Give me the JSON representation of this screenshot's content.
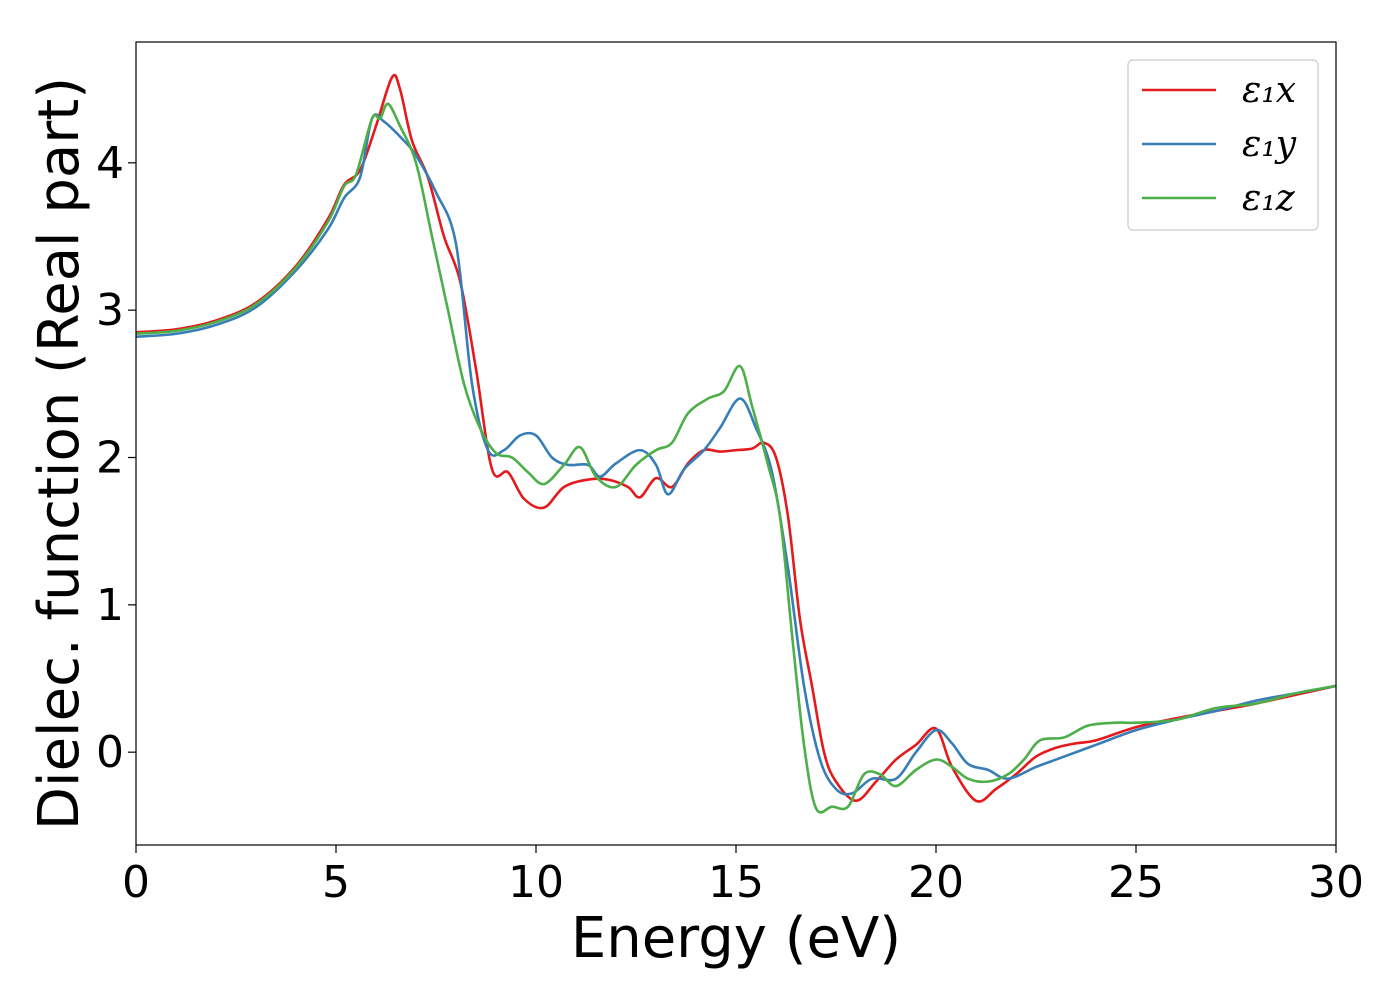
{
  "chart_data": {
    "type": "line",
    "xlabel": "Energy (eV)",
    "ylabel": "Dielec. function (Real part)",
    "xlim": [
      0,
      30
    ],
    "ylim": [
      -0.63,
      4.82
    ],
    "xticks": [
      0,
      5,
      10,
      15,
      20,
      25,
      30
    ],
    "yticks": [
      0,
      1,
      2,
      3,
      4
    ],
    "grid": false,
    "legend_position": "top-right",
    "series": [
      {
        "name": "ε₁x",
        "color": "#e41a1c",
        "points": [
          [
            0,
            2.85
          ],
          [
            1,
            2.87
          ],
          [
            2,
            2.93
          ],
          [
            3,
            3.05
          ],
          [
            4,
            3.3
          ],
          [
            4.8,
            3.62
          ],
          [
            5.2,
            3.85
          ],
          [
            5.6,
            3.95
          ],
          [
            6,
            4.25
          ],
          [
            6.4,
            4.58
          ],
          [
            6.6,
            4.5
          ],
          [
            6.9,
            4.15
          ],
          [
            7.3,
            3.9
          ],
          [
            7.7,
            3.5
          ],
          [
            8.1,
            3.2
          ],
          [
            8.5,
            2.6
          ],
          [
            8.9,
            1.92
          ],
          [
            9.3,
            1.9
          ],
          [
            9.7,
            1.72
          ],
          [
            10.2,
            1.66
          ],
          [
            10.7,
            1.8
          ],
          [
            11.3,
            1.85
          ],
          [
            11.8,
            1.85
          ],
          [
            12.3,
            1.8
          ],
          [
            12.6,
            1.73
          ],
          [
            13,
            1.86
          ],
          [
            13.4,
            1.8
          ],
          [
            13.8,
            1.96
          ],
          [
            14.2,
            2.05
          ],
          [
            14.6,
            2.04
          ],
          [
            15,
            2.05
          ],
          [
            15.4,
            2.06
          ],
          [
            15.7,
            2.1
          ],
          [
            16,
            2.0
          ],
          [
            16.3,
            1.6
          ],
          [
            16.6,
            0.9
          ],
          [
            16.9,
            0.45
          ],
          [
            17.2,
            0.0
          ],
          [
            17.5,
            -0.2
          ],
          [
            18.0,
            -0.33
          ],
          [
            18.5,
            -0.2
          ],
          [
            19,
            -0.05
          ],
          [
            19.5,
            0.05
          ],
          [
            20,
            0.16
          ],
          [
            20.4,
            -0.1
          ],
          [
            21,
            -0.33
          ],
          [
            21.5,
            -0.25
          ],
          [
            22,
            -0.15
          ],
          [
            22.5,
            -0.03
          ],
          [
            23,
            0.03
          ],
          [
            23.5,
            0.06
          ],
          [
            24,
            0.08
          ],
          [
            25,
            0.17
          ],
          [
            26,
            0.23
          ],
          [
            27,
            0.28
          ],
          [
            28,
            0.33
          ],
          [
            29,
            0.39
          ],
          [
            30,
            0.45
          ]
        ]
      },
      {
        "name": "ε₁y",
        "color": "#377eb8",
        "points": [
          [
            0,
            2.82
          ],
          [
            1,
            2.84
          ],
          [
            2,
            2.9
          ],
          [
            3,
            3.02
          ],
          [
            4,
            3.27
          ],
          [
            4.8,
            3.55
          ],
          [
            5.2,
            3.76
          ],
          [
            5.6,
            3.9
          ],
          [
            5.9,
            4.3
          ],
          [
            6.2,
            4.28
          ],
          [
            6.7,
            4.15
          ],
          [
            7,
            4.05
          ],
          [
            7.5,
            3.8
          ],
          [
            8,
            3.45
          ],
          [
            8.4,
            2.5
          ],
          [
            8.8,
            2.05
          ],
          [
            9.2,
            2.05
          ],
          [
            9.6,
            2.15
          ],
          [
            10,
            2.15
          ],
          [
            10.4,
            2.0
          ],
          [
            10.8,
            1.95
          ],
          [
            11.3,
            1.95
          ],
          [
            11.6,
            1.87
          ],
          [
            12,
            1.96
          ],
          [
            12.6,
            2.05
          ],
          [
            13,
            1.95
          ],
          [
            13.3,
            1.75
          ],
          [
            13.7,
            1.92
          ],
          [
            14.2,
            2.05
          ],
          [
            14.6,
            2.2
          ],
          [
            15.1,
            2.4
          ],
          [
            15.5,
            2.2
          ],
          [
            15.9,
            1.9
          ],
          [
            16.3,
            1.25
          ],
          [
            16.7,
            0.45
          ],
          [
            17.1,
            -0.05
          ],
          [
            17.5,
            -0.25
          ],
          [
            17.9,
            -0.28
          ],
          [
            18.4,
            -0.18
          ],
          [
            19,
            -0.18
          ],
          [
            19.5,
            0.0
          ],
          [
            20,
            0.15
          ],
          [
            20.4,
            0.06
          ],
          [
            20.8,
            -0.08
          ],
          [
            21.3,
            -0.12
          ],
          [
            21.8,
            -0.18
          ],
          [
            22.5,
            -0.1
          ],
          [
            23,
            -0.05
          ],
          [
            24,
            0.05
          ],
          [
            25,
            0.15
          ],
          [
            26,
            0.22
          ],
          [
            27,
            0.28
          ],
          [
            28,
            0.35
          ],
          [
            29,
            0.4
          ],
          [
            30,
            0.45
          ]
        ]
      },
      {
        "name": "ε₁z",
        "color": "#4daf4a",
        "points": [
          [
            0,
            2.84
          ],
          [
            1,
            2.86
          ],
          [
            2,
            2.92
          ],
          [
            3,
            3.04
          ],
          [
            4,
            3.29
          ],
          [
            4.8,
            3.6
          ],
          [
            5.2,
            3.84
          ],
          [
            5.5,
            3.92
          ],
          [
            5.9,
            4.3
          ],
          [
            6.1,
            4.3
          ],
          [
            6.3,
            4.4
          ],
          [
            6.6,
            4.25
          ],
          [
            7,
            4.0
          ],
          [
            7.4,
            3.5
          ],
          [
            7.8,
            3.0
          ],
          [
            8.2,
            2.5
          ],
          [
            8.6,
            2.2
          ],
          [
            9,
            2.03
          ],
          [
            9.4,
            2.0
          ],
          [
            9.8,
            1.9
          ],
          [
            10.2,
            1.82
          ],
          [
            10.7,
            1.95
          ],
          [
            11.1,
            2.07
          ],
          [
            11.5,
            1.87
          ],
          [
            12,
            1.8
          ],
          [
            12.5,
            1.95
          ],
          [
            13,
            2.05
          ],
          [
            13.4,
            2.1
          ],
          [
            13.8,
            2.3
          ],
          [
            14.3,
            2.4
          ],
          [
            14.7,
            2.45
          ],
          [
            15.1,
            2.62
          ],
          [
            15.4,
            2.35
          ],
          [
            15.8,
            1.95
          ],
          [
            16.1,
            1.6
          ],
          [
            16.4,
            0.8
          ],
          [
            16.7,
            0.05
          ],
          [
            17,
            -0.38
          ],
          [
            17.4,
            -0.37
          ],
          [
            17.8,
            -0.37
          ],
          [
            18.2,
            -0.15
          ],
          [
            18.6,
            -0.15
          ],
          [
            19,
            -0.23
          ],
          [
            19.5,
            -0.12
          ],
          [
            20,
            -0.05
          ],
          [
            20.4,
            -0.1
          ],
          [
            20.8,
            -0.18
          ],
          [
            21.3,
            -0.2
          ],
          [
            21.8,
            -0.15
          ],
          [
            22.2,
            -0.05
          ],
          [
            22.6,
            0.08
          ],
          [
            23.2,
            0.1
          ],
          [
            23.8,
            0.18
          ],
          [
            24.5,
            0.2
          ],
          [
            25,
            0.2
          ],
          [
            26,
            0.22
          ],
          [
            27,
            0.3
          ],
          [
            28,
            0.33
          ],
          [
            29,
            0.4
          ],
          [
            30,
            0.45
          ]
        ]
      }
    ]
  }
}
